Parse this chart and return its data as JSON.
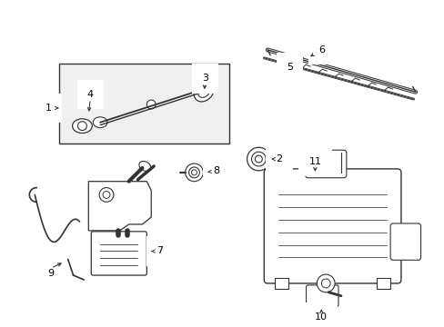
{
  "bg_color": "#ffffff",
  "line_color": "#333333",
  "label_color": "#000000",
  "font_size_label": 8,
  "box_bg": "#f5f5f5"
}
